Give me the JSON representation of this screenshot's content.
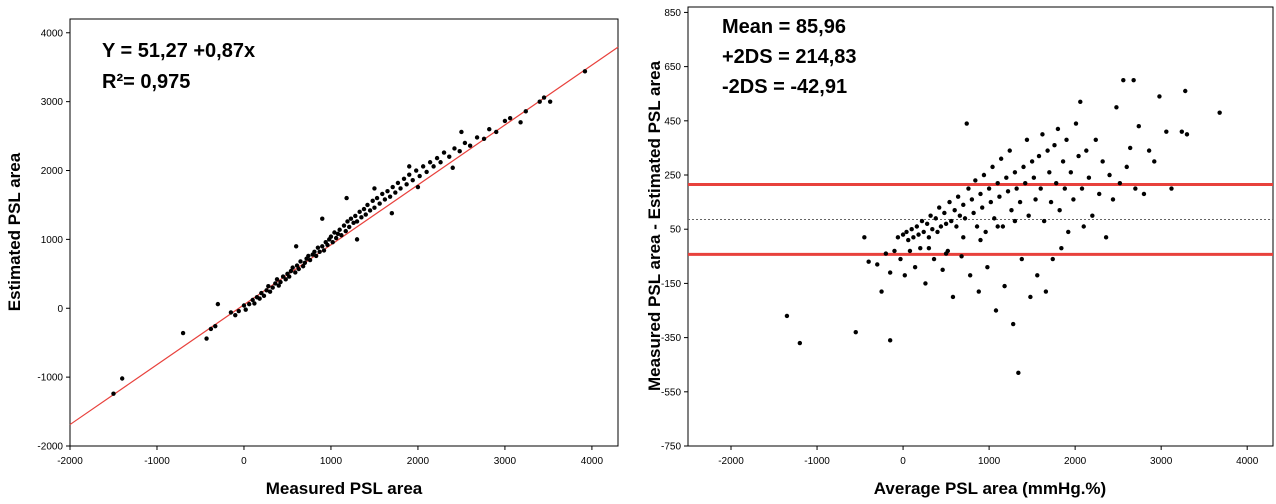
{
  "chart_data": [
    {
      "type": "scatter",
      "xlabel": "Measured PSL area",
      "ylabel": "Estimated PSL area",
      "xlim": [
        -2000,
        4300
      ],
      "ylim": [
        -2000,
        4200
      ],
      "xticks": [
        -2000,
        -1000,
        0,
        1000,
        2000,
        3000,
        4000
      ],
      "yticks": [
        -2000,
        -1000,
        0,
        1000,
        2000,
        3000,
        4000
      ],
      "annotations": [
        "Y = 51,27 +0,87x",
        "R²= 0,975"
      ],
      "regression": {
        "intercept": 51.27,
        "slope": 0.87,
        "color": "#e8413c"
      },
      "point_color": "#000000",
      "points": [
        [
          -1500,
          -1240
        ],
        [
          -1400,
          -1020
        ],
        [
          -700,
          -360
        ],
        [
          -430,
          -440
        ],
        [
          -380,
          -300
        ],
        [
          -330,
          -260
        ],
        [
          -300,
          60
        ],
        [
          -150,
          -60
        ],
        [
          -100,
          -100
        ],
        [
          -60,
          -40
        ],
        [
          0,
          40
        ],
        [
          20,
          -20
        ],
        [
          60,
          60
        ],
        [
          100,
          120
        ],
        [
          120,
          70
        ],
        [
          150,
          160
        ],
        [
          180,
          140
        ],
        [
          200,
          220
        ],
        [
          230,
          180
        ],
        [
          260,
          260
        ],
        [
          280,
          320
        ],
        [
          300,
          240
        ],
        [
          330,
          300
        ],
        [
          360,
          360
        ],
        [
          380,
          420
        ],
        [
          400,
          330
        ],
        [
          420,
          380
        ],
        [
          450,
          460
        ],
        [
          480,
          420
        ],
        [
          500,
          500
        ],
        [
          520,
          460
        ],
        [
          540,
          540
        ],
        [
          560,
          590
        ],
        [
          590,
          520
        ],
        [
          610,
          620
        ],
        [
          630,
          570
        ],
        [
          650,
          680
        ],
        [
          680,
          610
        ],
        [
          700,
          660
        ],
        [
          720,
          720
        ],
        [
          740,
          760
        ],
        [
          760,
          700
        ],
        [
          790,
          780
        ],
        [
          810,
          820
        ],
        [
          830,
          760
        ],
        [
          850,
          880
        ],
        [
          870,
          820
        ],
        [
          900,
          900
        ],
        [
          920,
          840
        ],
        [
          940,
          960
        ],
        [
          960,
          920
        ],
        [
          980,
          1000
        ],
        [
          1000,
          1040
        ],
        [
          1020,
          960
        ],
        [
          1040,
          1100
        ],
        [
          1060,
          1020
        ],
        [
          1080,
          1080
        ],
        [
          1100,
          1140
        ],
        [
          1120,
          1060
        ],
        [
          1150,
          1200
        ],
        [
          1170,
          1120
        ],
        [
          1190,
          1260
        ],
        [
          1210,
          1180
        ],
        [
          1230,
          1300
        ],
        [
          1260,
          1240
        ],
        [
          1280,
          1340
        ],
        [
          1300,
          1260
        ],
        [
          1330,
          1400
        ],
        [
          1350,
          1320
        ],
        [
          1380,
          1440
        ],
        [
          1400,
          1360
        ],
        [
          1420,
          1500
        ],
        [
          1450,
          1420
        ],
        [
          1480,
          1560
        ],
        [
          1500,
          1460
        ],
        [
          1530,
          1600
        ],
        [
          1560,
          1520
        ],
        [
          1590,
          1660
        ],
        [
          1620,
          1580
        ],
        [
          1650,
          1700
        ],
        [
          1680,
          1620
        ],
        [
          1710,
          1760
        ],
        [
          1740,
          1680
        ],
        [
          1770,
          1820
        ],
        [
          1800,
          1740
        ],
        [
          1840,
          1880
        ],
        [
          1870,
          1800
        ],
        [
          1900,
          1940
        ],
        [
          1940,
          1860
        ],
        [
          1980,
          2000
        ],
        [
          2020,
          1920
        ],
        [
          2060,
          2060
        ],
        [
          2100,
          1980
        ],
        [
          2140,
          2120
        ],
        [
          2180,
          2060
        ],
        [
          2220,
          2180
        ],
        [
          2260,
          2120
        ],
        [
          2300,
          2260
        ],
        [
          2360,
          2200
        ],
        [
          2420,
          2320
        ],
        [
          2480,
          2280
        ],
        [
          2540,
          2400
        ],
        [
          2600,
          2360
        ],
        [
          2680,
          2480
        ],
        [
          2760,
          2460
        ],
        [
          2820,
          2600
        ],
        [
          2900,
          2560
        ],
        [
          3000,
          2720
        ],
        [
          3060,
          2760
        ],
        [
          3180,
          2700
        ],
        [
          3240,
          2860
        ],
        [
          3400,
          3000
        ],
        [
          3450,
          3060
        ],
        [
          3520,
          3000
        ],
        [
          3920,
          3440
        ],
        [
          1180,
          1600
        ],
        [
          1500,
          1740
        ],
        [
          900,
          1300
        ],
        [
          1700,
          1380
        ],
        [
          2400,
          2040
        ],
        [
          600,
          900
        ],
        [
          1300,
          1000
        ],
        [
          1900,
          2060
        ],
        [
          2000,
          1760
        ],
        [
          2500,
          2560
        ]
      ]
    },
    {
      "type": "scatter",
      "xlabel": "Average PSL area (mmHg.%)",
      "ylabel": "Measured PSL area - Estimated PSL area",
      "xlim": [
        -2500,
        4300
      ],
      "ylim": [
        -750,
        870
      ],
      "xticks": [
        -2000,
        -1000,
        0,
        1000,
        2000,
        3000,
        4000
      ],
      "yticks": [
        -750,
        -550,
        -350,
        -150,
        50,
        250,
        450,
        650,
        850
      ],
      "annotations": [
        "Mean = 85,96",
        "+2DS = 214,83",
        "-2DS = -42,91"
      ],
      "mean": 85.96,
      "upper_limit": 214.83,
      "lower_limit": -42.91,
      "limit_color": "#e8413c",
      "mean_line_color": "#666666",
      "point_color": "#000000",
      "points": [
        [
          -1350,
          -270
        ],
        [
          -1200,
          -370
        ],
        [
          -550,
          -330
        ],
        [
          -150,
          -360
        ],
        [
          -450,
          20
        ],
        [
          -400,
          -70
        ],
        [
          -300,
          -80
        ],
        [
          -250,
          -180
        ],
        [
          -200,
          -40
        ],
        [
          -150,
          -110
        ],
        [
          -100,
          -30
        ],
        [
          -60,
          20
        ],
        [
          -30,
          -60
        ],
        [
          0,
          30
        ],
        [
          20,
          -120
        ],
        [
          40,
          40
        ],
        [
          60,
          10
        ],
        [
          80,
          -30
        ],
        [
          100,
          50
        ],
        [
          120,
          20
        ],
        [
          140,
          -90
        ],
        [
          160,
          60
        ],
        [
          180,
          30
        ],
        [
          200,
          -20
        ],
        [
          220,
          80
        ],
        [
          240,
          40
        ],
        [
          260,
          -150
        ],
        [
          280,
          70
        ],
        [
          300,
          20
        ],
        [
          320,
          100
        ],
        [
          340,
          50
        ],
        [
          360,
          -60
        ],
        [
          380,
          90
        ],
        [
          400,
          40
        ],
        [
          420,
          130
        ],
        [
          440,
          60
        ],
        [
          460,
          -100
        ],
        [
          480,
          110
        ],
        [
          500,
          70
        ],
        [
          520,
          -30
        ],
        [
          540,
          150
        ],
        [
          560,
          80
        ],
        [
          580,
          -200
        ],
        [
          600,
          120
        ],
        [
          620,
          60
        ],
        [
          640,
          170
        ],
        [
          660,
          100
        ],
        [
          680,
          -50
        ],
        [
          700,
          140
        ],
        [
          720,
          90
        ],
        [
          740,
          440
        ],
        [
          760,
          200
        ],
        [
          780,
          -120
        ],
        [
          800,
          160
        ],
        [
          820,
          110
        ],
        [
          840,
          230
        ],
        [
          860,
          60
        ],
        [
          880,
          -180
        ],
        [
          900,
          180
        ],
        [
          920,
          130
        ],
        [
          940,
          250
        ],
        [
          960,
          40
        ],
        [
          980,
          -90
        ],
        [
          1000,
          200
        ],
        [
          1020,
          150
        ],
        [
          1040,
          280
        ],
        [
          1060,
          90
        ],
        [
          1080,
          -250
        ],
        [
          1100,
          220
        ],
        [
          1120,
          170
        ],
        [
          1140,
          310
        ],
        [
          1160,
          60
        ],
        [
          1180,
          -160
        ],
        [
          1200,
          240
        ],
        [
          1220,
          190
        ],
        [
          1240,
          340
        ],
        [
          1260,
          120
        ],
        [
          1280,
          -300
        ],
        [
          1300,
          260
        ],
        [
          1320,
          200
        ],
        [
          1340,
          -480
        ],
        [
          1360,
          150
        ],
        [
          1380,
          -60
        ],
        [
          1400,
          280
        ],
        [
          1420,
          220
        ],
        [
          1440,
          380
        ],
        [
          1460,
          100
        ],
        [
          1480,
          -200
        ],
        [
          1500,
          300
        ],
        [
          1520,
          240
        ],
        [
          1540,
          160
        ],
        [
          1560,
          -120
        ],
        [
          1580,
          320
        ],
        [
          1600,
          200
        ],
        [
          1620,
          400
        ],
        [
          1640,
          80
        ],
        [
          1660,
          -180
        ],
        [
          1680,
          340
        ],
        [
          1700,
          260
        ],
        [
          1720,
          150
        ],
        [
          1740,
          -60
        ],
        [
          1760,
          360
        ],
        [
          1780,
          220
        ],
        [
          1800,
          420
        ],
        [
          1820,
          120
        ],
        [
          1840,
          -20
        ],
        [
          1860,
          300
        ],
        [
          1880,
          200
        ],
        [
          1900,
          380
        ],
        [
          1920,
          40
        ],
        [
          1950,
          260
        ],
        [
          1980,
          160
        ],
        [
          2010,
          440
        ],
        [
          2040,
          320
        ],
        [
          2060,
          520
        ],
        [
          2080,
          200
        ],
        [
          2100,
          60
        ],
        [
          2130,
          340
        ],
        [
          2160,
          240
        ],
        [
          2200,
          100
        ],
        [
          2240,
          380
        ],
        [
          2280,
          180
        ],
        [
          2320,
          300
        ],
        [
          2360,
          20
        ],
        [
          2400,
          250
        ],
        [
          2440,
          160
        ],
        [
          2480,
          500
        ],
        [
          2520,
          220
        ],
        [
          2560,
          600
        ],
        [
          2600,
          280
        ],
        [
          2640,
          350
        ],
        [
          2680,
          600
        ],
        [
          2700,
          200
        ],
        [
          2740,
          430
        ],
        [
          2800,
          180
        ],
        [
          2860,
          340
        ],
        [
          2920,
          300
        ],
        [
          2980,
          540
        ],
        [
          3060,
          410
        ],
        [
          3120,
          200
        ],
        [
          3240,
          410
        ],
        [
          3280,
          560
        ],
        [
          3300,
          400
        ],
        [
          3680,
          480
        ],
        [
          500,
          -40
        ],
        [
          700,
          20
        ],
        [
          300,
          -20
        ],
        [
          900,
          10
        ],
        [
          1100,
          60
        ],
        [
          1300,
          80
        ]
      ]
    }
  ]
}
